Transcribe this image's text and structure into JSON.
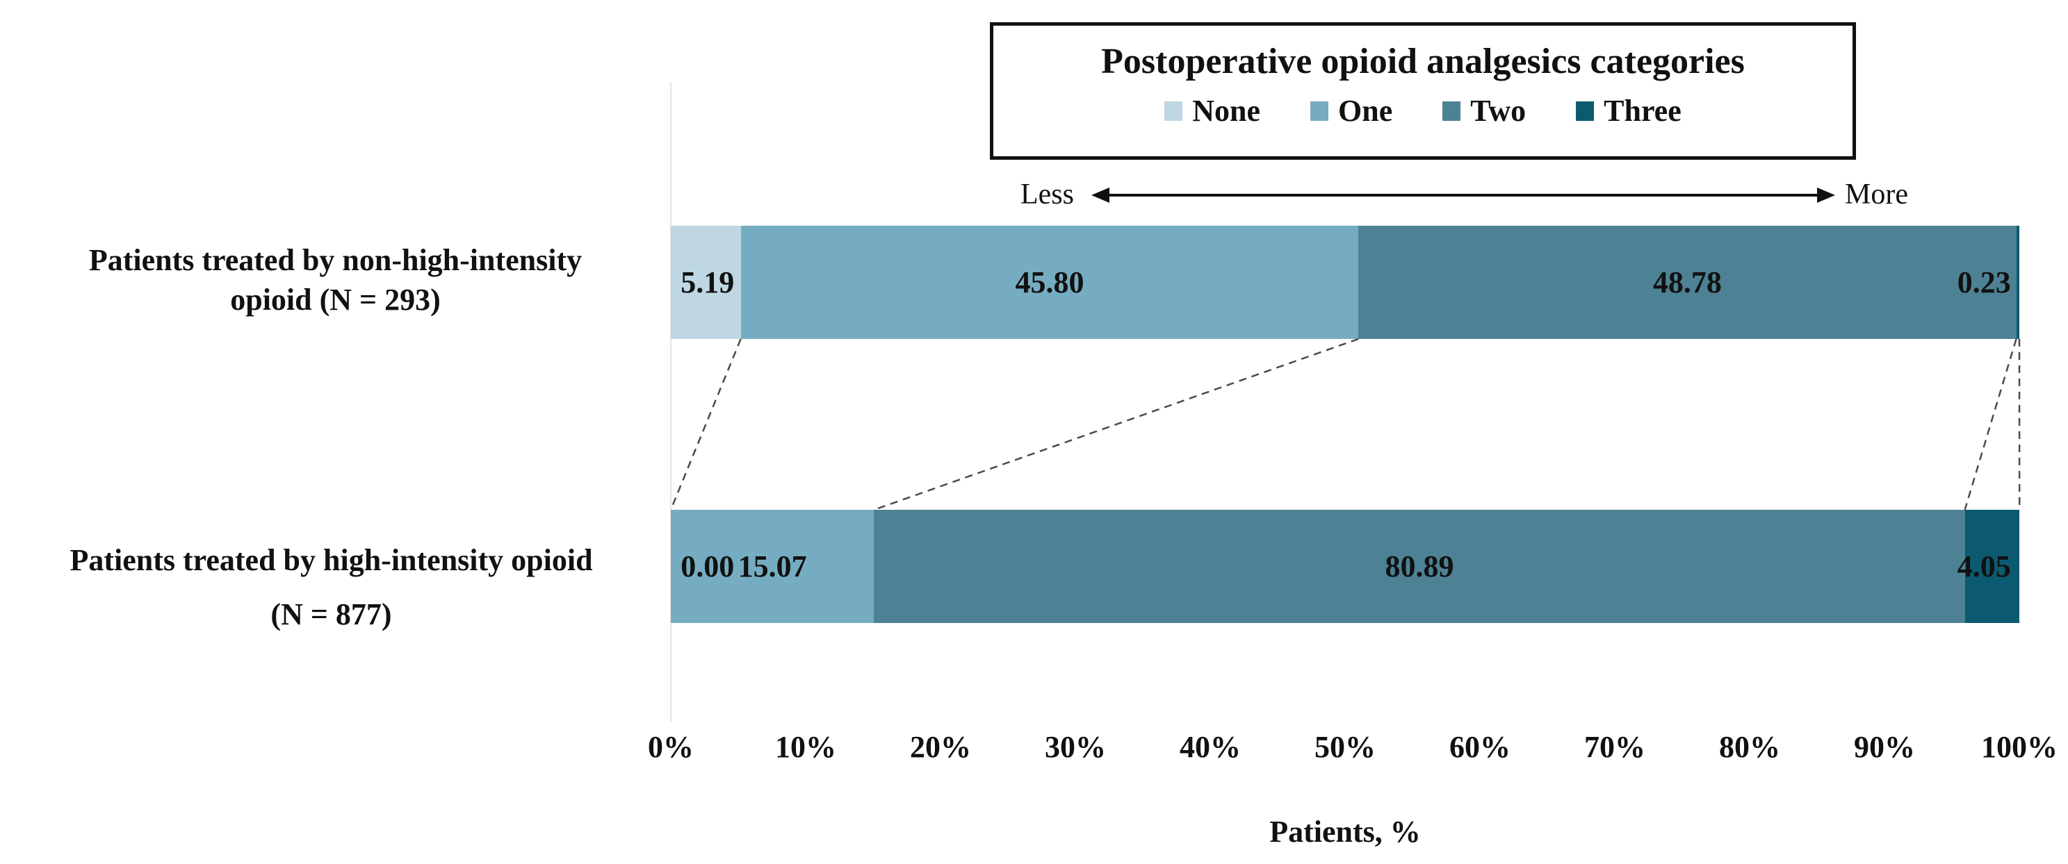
{
  "figure": {
    "legend": {
      "title": "Postoperative opioid analgesics categories",
      "items": [
        {
          "label": "None",
          "color": "#bed7e2"
        },
        {
          "label": "One",
          "color": "#76acc1"
        },
        {
          "label": "Two",
          "color": "#4d8294"
        },
        {
          "label": "Three",
          "color": "#0c5a70"
        }
      ]
    },
    "annotation": {
      "less": "Less",
      "more": "More"
    }
  },
  "chart_data": {
    "type": "bar",
    "orientation": "horizontal",
    "stacked": true,
    "title": "Postoperative opioid analgesics categories",
    "categories": [
      "Patients treated by non-high-intensity opioid (N = 293)",
      "Patients treated by high-intensity opioid (N = 877)"
    ],
    "category_lines": [
      [
        "Patients treated by non-high-intensity",
        "opioid (N = 293)"
      ],
      [
        "Patients treated by high-intensity opioid",
        "(N = 877)"
      ]
    ],
    "series": [
      {
        "name": "None",
        "values": [
          5.19,
          0.0
        ]
      },
      {
        "name": "One",
        "values": [
          45.8,
          15.07
        ]
      },
      {
        "name": "Two",
        "values": [
          48.78,
          80.89
        ]
      },
      {
        "name": "Three",
        "values": [
          0.23,
          4.05
        ]
      }
    ],
    "value_labels": [
      [
        "5.19",
        "45.80",
        "48.78",
        "0.23"
      ],
      [
        "0.00",
        "15.07",
        "80.89",
        "4.05"
      ]
    ],
    "colors": [
      "#bed7e2",
      "#76acc1",
      "#4d8294",
      "#0c5a70"
    ],
    "xlabel": "Patients, %",
    "xlim": [
      0,
      100
    ],
    "x_ticks": [
      "0%",
      "10%",
      "20%",
      "30%",
      "40%",
      "50%",
      "60%",
      "70%",
      "80%",
      "90%",
      "100%"
    ],
    "legend_position": "top",
    "grid": false,
    "annotations": [
      "Less",
      "More"
    ]
  }
}
